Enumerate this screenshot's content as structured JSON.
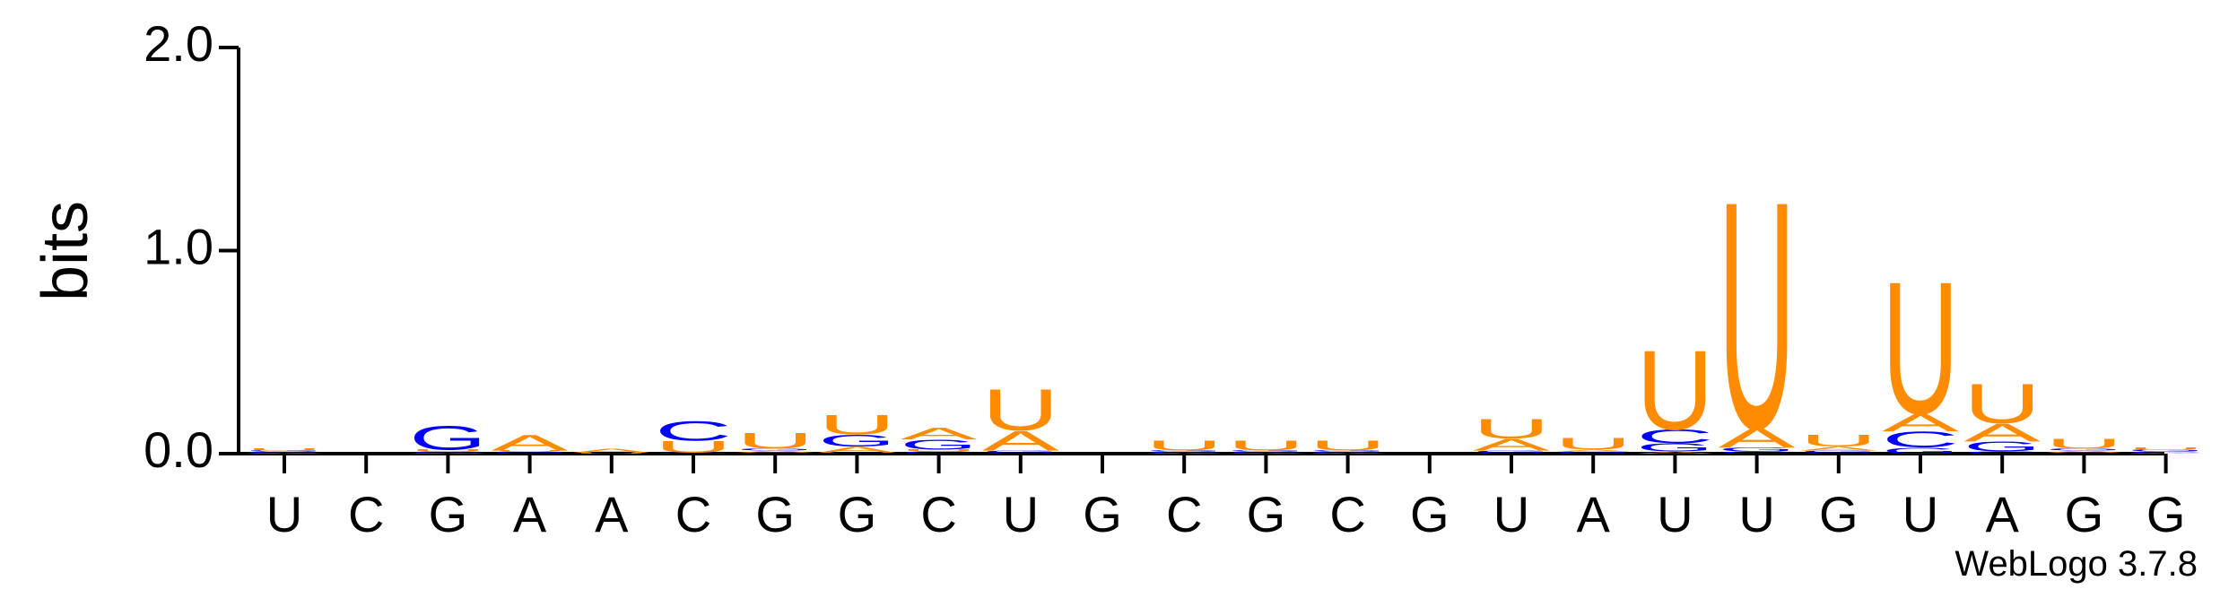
{
  "chart_data": {
    "type": "logo",
    "y_label": "bits",
    "footer": "WebLogo 3.7.8",
    "categories": [
      "U",
      "C",
      "G",
      "A",
      "A",
      "C",
      "G",
      "G",
      "C",
      "U",
      "G",
      "C",
      "G",
      "C",
      "G",
      "U",
      "A",
      "U",
      "U",
      "G",
      "U",
      "A",
      "G",
      "G"
    ],
    "ylim": [
      0,
      2
    ],
    "yticks": [
      {
        "value": 0,
        "label": "0.0"
      },
      {
        "value": 1,
        "label": "1.0"
      },
      {
        "value": 2,
        "label": "2.0"
      }
    ],
    "series": [
      {
        "name": "A",
        "color": "#ff8c00",
        "values": [
          0.005,
          0,
          0.005,
          0.08,
          0.02,
          0,
          0.01,
          0.03,
          0.06,
          0.1,
          0,
          0.005,
          0.005,
          0.005,
          0,
          0.06,
          0.01,
          0.01,
          0.1,
          0.02,
          0.09,
          0.09,
          0.01,
          0.005
        ]
      },
      {
        "name": "C",
        "color": "#0000ff",
        "values": [
          0.005,
          0,
          0.005,
          0.005,
          0,
          0.1,
          0.005,
          0.005,
          0.01,
          0.005,
          0,
          0.005,
          0.005,
          0.005,
          0,
          0.005,
          0.005,
          0.07,
          0.01,
          0.005,
          0.08,
          0.01,
          0.005,
          0.005
        ]
      },
      {
        "name": "G",
        "color": "#0000ff",
        "values": [
          0.005,
          0,
          0.12,
          0.005,
          0,
          0.005,
          0.01,
          0.06,
          0.05,
          0.01,
          0,
          0.005,
          0.005,
          0.005,
          0,
          0.01,
          0.005,
          0.04,
          0.02,
          0.01,
          0.03,
          0.05,
          0.01,
          0.01
        ]
      },
      {
        "name": "U",
        "color": "#ff8c00",
        "values": [
          0.01,
          0,
          0.01,
          0.005,
          0.005,
          0.06,
          0.08,
          0.1,
          0.01,
          0.21,
          0,
          0.05,
          0.05,
          0.05,
          0,
          0.1,
          0.06,
          0.4,
          1.15,
          0.06,
          0.67,
          0.2,
          0.05,
          0.01
        ]
      }
    ]
  }
}
